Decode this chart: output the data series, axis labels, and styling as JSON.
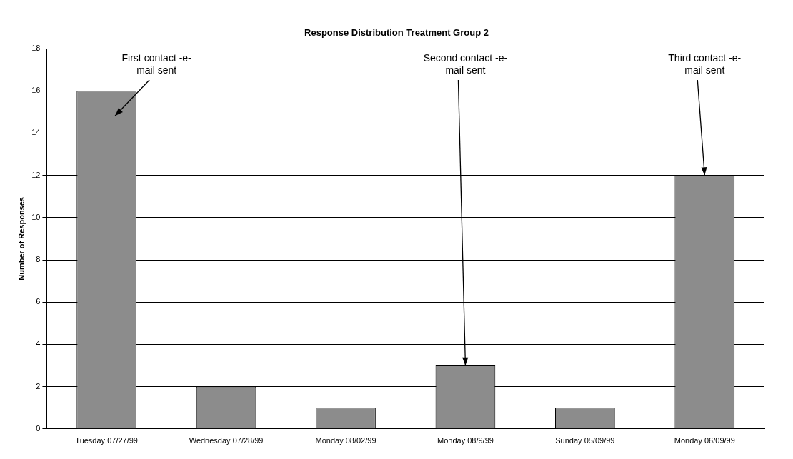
{
  "chart_data": {
    "type": "bar",
    "title": "Response Distribution Treatment Group 2",
    "ylabel": "Number of Responses",
    "categories": [
      "Tuesday 07/27/99",
      "Wednesday 07/28/99",
      "Monday 08/02/99",
      "Monday 08/9/99",
      "Sunday 05/09/99",
      "Monday 06/09/99"
    ],
    "values": [
      16,
      2,
      1,
      3,
      1,
      12
    ],
    "color": "#8c8c8c",
    "ylim": [
      0,
      18
    ],
    "yticks": [
      0,
      2,
      4,
      6,
      8,
      10,
      12,
      14,
      16,
      18
    ],
    "grid": "y",
    "legend": false,
    "annotations": [
      {
        "text": "First contact -e- mail sent",
        "x": "Tuesday 07/27/99",
        "y": 16
      },
      {
        "text": "Second contact -e- mail sent",
        "x": "Monday 08/9/99",
        "y": 3
      },
      {
        "text": "Third contact -e- mail sent",
        "x": "Monday 06/09/99",
        "y": 12
      }
    ]
  }
}
